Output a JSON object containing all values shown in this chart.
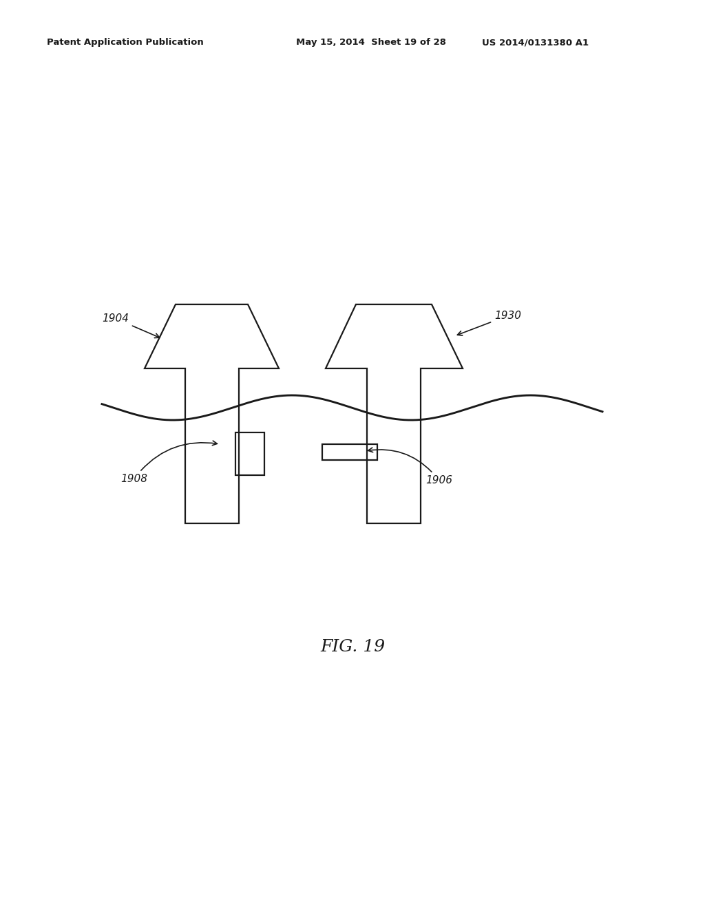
{
  "header_left": "Patent Application Publication",
  "header_mid": "May 15, 2014  Sheet 19 of 28",
  "header_right": "US 2014/0131380 A1",
  "fig_label": "FIG. 19",
  "bg_color": "#ffffff",
  "line_color": "#1a1a1a",
  "line_width": 1.6
}
